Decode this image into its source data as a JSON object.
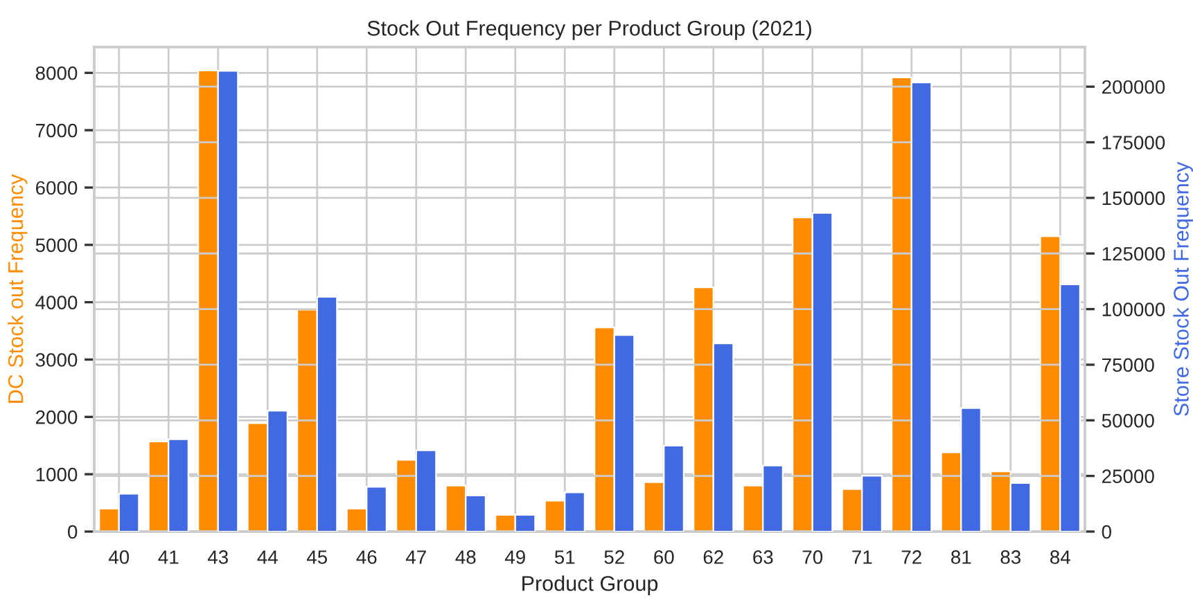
{
  "chart_data": {
    "type": "bar",
    "title": "Stock Out Frequency per Product Group (2021)",
    "xlabel": "Product Group",
    "ylabel": "DC Stock out Frequency",
    "y2label": "Store Stock Out Frequency",
    "categories": [
      "40",
      "41",
      "43",
      "44",
      "45",
      "46",
      "47",
      "48",
      "49",
      "51",
      "52",
      "60",
      "62",
      "63",
      "70",
      "71",
      "72",
      "81",
      "83",
      "84"
    ],
    "series": [
      {
        "color": "#ff8c00",
        "values": [
          400,
          1570,
          8040,
          1890,
          3870,
          400,
          1250,
          800,
          290,
          540,
          3560,
          860,
          4260,
          800,
          5480,
          740,
          7920,
          1380,
          1050,
          5150
        ]
      },
      {
        "color": "#4169e1",
        "axis": "y2",
        "values": [
          17000,
          41500,
          207100,
          54300,
          105500,
          20100,
          36500,
          16200,
          7500,
          17600,
          88300,
          38600,
          84600,
          29700,
          143200,
          25100,
          201900,
          55500,
          21800,
          111100
        ]
      }
    ],
    "ylim": [
      0,
      8450
    ],
    "yticks": [
      0,
      1000,
      2000,
      3000,
      4000,
      5000,
      6000,
      7000,
      8000
    ],
    "y2lim": [
      0,
      217800
    ],
    "y2ticks": [
      0,
      25000,
      50000,
      75000,
      100000,
      125000,
      150000,
      175000,
      200000
    ],
    "grid": true,
    "legend": false
  }
}
